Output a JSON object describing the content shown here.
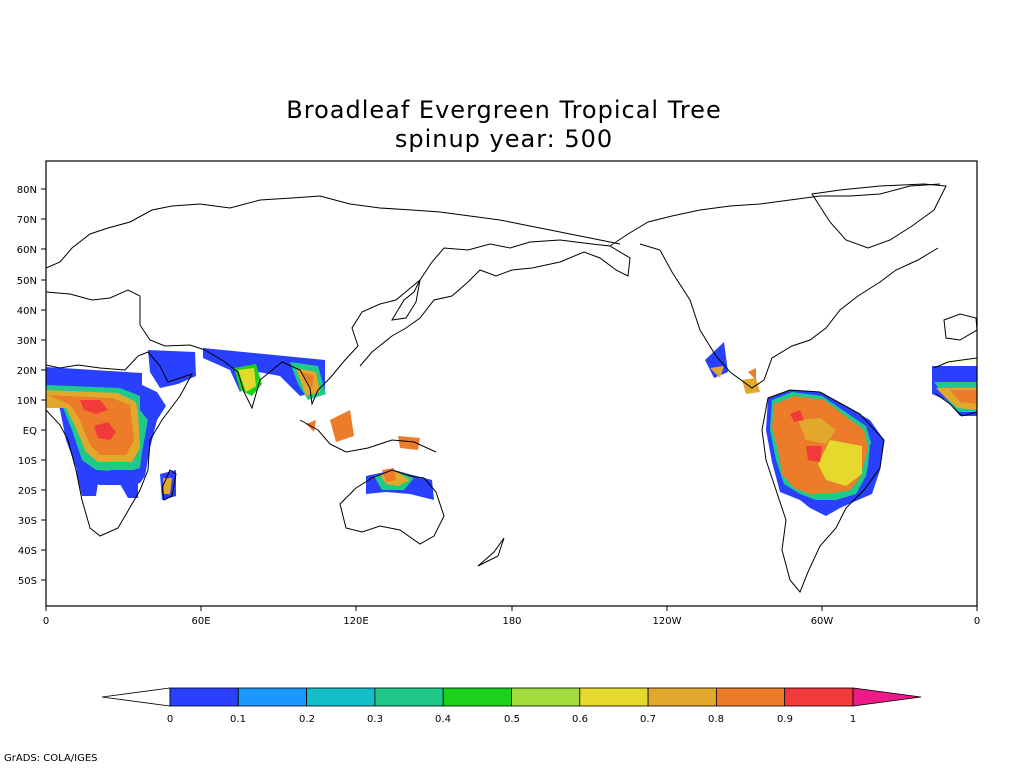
{
  "title": {
    "line1": "Broadleaf Evergreen Tropical Tree",
    "line2": "spinup year: 500"
  },
  "map": {
    "projection": "equirectangular",
    "longitude_range": "0 to 360 (0 to 0)",
    "latitude_range": "-60 to 90",
    "lat_labels": [
      "80N",
      "70N",
      "60N",
      "50N",
      "40N",
      "30N",
      "20N",
      "10N",
      "EQ",
      "10S",
      "20S",
      "30S",
      "40S",
      "50S"
    ],
    "lon_labels": [
      "0",
      "60E",
      "120E",
      "180",
      "120W",
      "60W",
      "0"
    ]
  },
  "colorbar": {
    "labels": [
      "0",
      "0.1",
      "0.2",
      "0.3",
      "0.4",
      "0.5",
      "0.6",
      "0.7",
      "0.8",
      "0.9",
      "1"
    ],
    "colors": [
      "#2a40ff",
      "#1b98ff",
      "#12bfc8",
      "#1ec98a",
      "#1bd21b",
      "#a0dc3c",
      "#e6d92e",
      "#e2a82c",
      "#ec7c2a",
      "#f33a3a"
    ],
    "under_color": "#ffffff",
    "over_color": "#ee1a88"
  },
  "credit": "GrADS: COLA/IGES"
}
